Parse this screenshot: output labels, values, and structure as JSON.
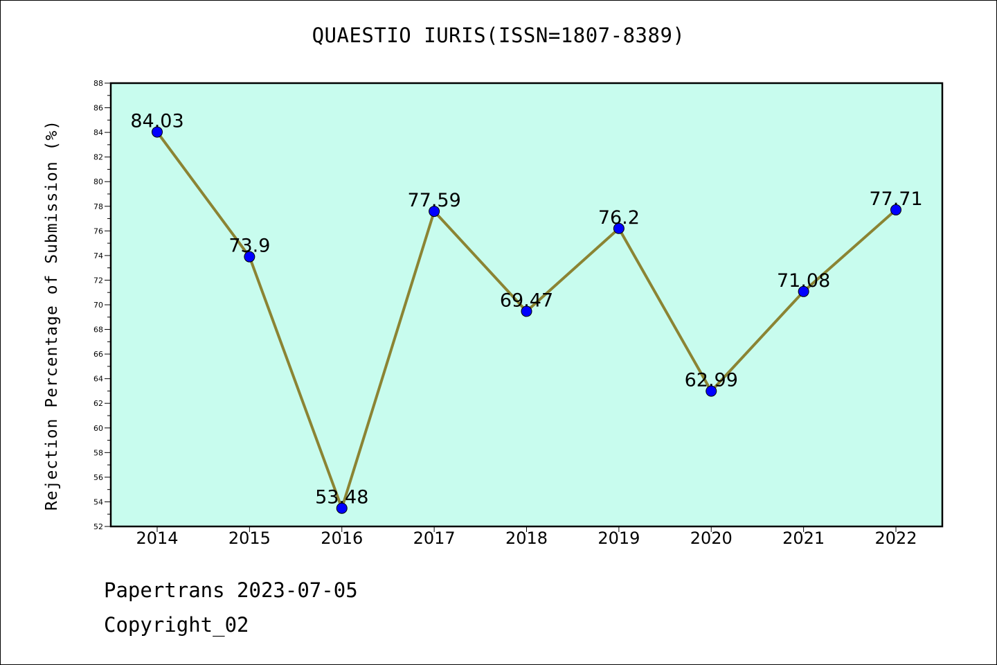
{
  "chart_data": {
    "type": "line",
    "title": "QUAESTIO IURIS(ISSN=1807-8389)",
    "xlabel": "",
    "ylabel": "Rejection Percentage of Submission (%)",
    "categories": [
      "2014",
      "2015",
      "2016",
      "2017",
      "2018",
      "2019",
      "2020",
      "2021",
      "2022"
    ],
    "series": [
      {
        "values": [
          84.03,
          73.9,
          53.48,
          77.59,
          69.47,
          76.2,
          62.99,
          71.08,
          77.71
        ],
        "labels": [
          "84.03",
          "73.9",
          "53.48",
          "77.59",
          "69.47",
          "76.2",
          "62.99",
          "71.08",
          "77.71"
        ]
      }
    ],
    "ylim": [
      52,
      88
    ],
    "yticks": [
      "52",
      "54",
      "56",
      "58",
      "60",
      "62",
      "64",
      "66",
      "68",
      "70",
      "72",
      "74",
      "76",
      "78",
      "80",
      "82",
      "84",
      "86",
      "88"
    ],
    "grid": false,
    "colors": {
      "plot_background": "#c8fcee",
      "line": "#8b8433",
      "marker": "#0000ff"
    }
  },
  "footer": {
    "date_text": "Papertrans 2023-07-05",
    "copyright_text": "Copyright_02"
  }
}
